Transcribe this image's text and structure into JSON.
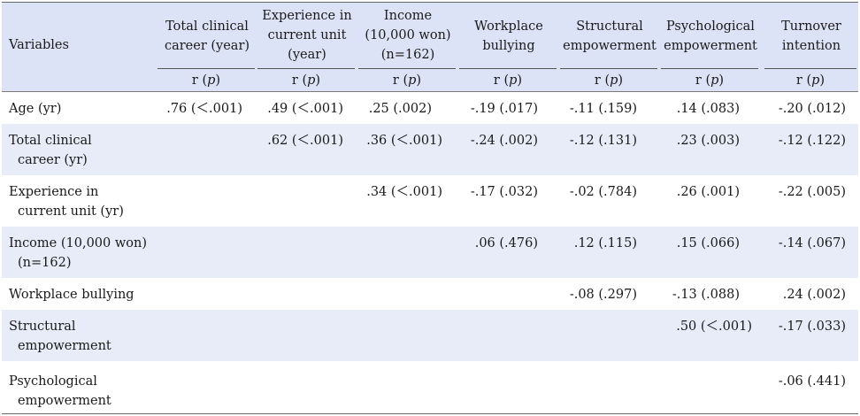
{
  "header": {
    "variables_label": "Variables",
    "columns": [
      {
        "line1": "Total clinical",
        "line2": "career (year)",
        "line3": ""
      },
      {
        "line1": "Experience in",
        "line2": "current unit",
        "line3": "(year)"
      },
      {
        "line1": "Income",
        "line2": "(10,000 won)",
        "line3": "(n=162)"
      },
      {
        "line1": "Workplace",
        "line2": "bullying",
        "line3": ""
      },
      {
        "line1": "Structural",
        "line2": "empowerment",
        "line3": ""
      },
      {
        "line1": "Psychological",
        "line2": "empowerment",
        "line3": ""
      },
      {
        "line1": "Turnover",
        "line2": "intention",
        "line3": ""
      }
    ],
    "sub_r": "r (",
    "sub_p": "p",
    "sub_close": ")"
  },
  "rows": [
    {
      "label1": "Age (yr)",
      "label2": "",
      "values": [
        ".76 (＜.001)",
        ".49 (＜.001)",
        ".25 (.002)",
        "-.19 (.017)",
        "-.11 (.159)",
        ".14 (.083)",
        "-.20 (.012)"
      ]
    },
    {
      "label1": "Total clinical",
      "label2": "career (yr)",
      "values": [
        "",
        ".62 (＜.001)",
        ".36 (＜.001)",
        "-.24 (.002)",
        "-.12 (.131)",
        ".23 (.003)",
        "-.12 (.122)"
      ]
    },
    {
      "label1": "Experience in",
      "label2": "current unit (yr)",
      "values": [
        "",
        "",
        ".34 (＜.001)",
        "-.17 (.032)",
        "-.02 (.784)",
        ".26 (.001)",
        "-.22 (.005)"
      ]
    },
    {
      "label1": "Income (10,000 won)",
      "label2": "(n=162)",
      "values": [
        "",
        "",
        "",
        ".06 (.476)",
        ".12 (.115)",
        ".15 (.066)",
        "-.14 (.067)"
      ]
    },
    {
      "label1": "Workplace bullying",
      "label2": "",
      "values": [
        "",
        "",
        "",
        "",
        "-.08 (.297)",
        "-.13 (.088)",
        ".24 (.002)"
      ]
    },
    {
      "label1": "Structural",
      "label2": "empowerment",
      "values": [
        "",
        "",
        "",
        "",
        "",
        ".50 (＜.001)",
        "-.17 (.033)"
      ]
    },
    {
      "label1": "Psychological",
      "label2": "empowerment",
      "values": [
        "",
        "",
        "",
        "",
        "",
        "",
        "-.06 (.441)"
      ]
    }
  ]
}
